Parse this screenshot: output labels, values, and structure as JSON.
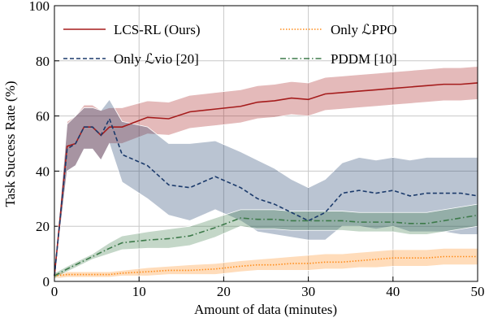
{
  "chart_data": {
    "type": "line",
    "xlabel": "Amount of data (minutes)",
    "ylabel": "Task Success Rate (%)",
    "xlim": [
      0,
      50
    ],
    "ylim": [
      0,
      100
    ],
    "xticks": [
      0,
      10,
      20,
      30,
      40,
      50
    ],
    "yticks": [
      0,
      20,
      40,
      60,
      80,
      100
    ],
    "grid": true,
    "x": [
      0,
      1.5,
      2.5,
      3.5,
      4.5,
      5.5,
      6.5,
      8,
      11,
      13.5,
      16,
      19,
      22,
      24,
      26,
      28,
      30,
      32,
      34,
      36,
      38,
      40,
      42,
      44,
      46,
      48,
      50
    ],
    "series": [
      {
        "name": "LCS-RL (Ours)",
        "color": "#a51c1c",
        "dash": "solid",
        "values": [
          2,
          49,
          50,
          56,
          56,
          53,
          56,
          56,
          59.5,
          59,
          61.5,
          62.5,
          63.5,
          65,
          65.5,
          66.5,
          66,
          68,
          68.5,
          69,
          69.5,
          70,
          70.5,
          71,
          71.5,
          71.5,
          72
        ],
        "upper": [
          3,
          58,
          60,
          64,
          64,
          62,
          63,
          63,
          65.5,
          65,
          67.5,
          68.5,
          69.5,
          71,
          71.5,
          72.5,
          72,
          74,
          74.5,
          75,
          75.5,
          76,
          76.5,
          77,
          77.5,
          77.5,
          78
        ],
        "lower": [
          1,
          40,
          42,
          48,
          48,
          44,
          50,
          50,
          53.5,
          53,
          55.5,
          56.5,
          57.5,
          59,
          59.5,
          60.5,
          60,
          62,
          62.5,
          63,
          63.5,
          64,
          64.5,
          65,
          65.5,
          65.5,
          66
        ]
      },
      {
        "name": "Only ℒvio [20]",
        "color": "#1b3a6b",
        "dash": "dashed",
        "values": [
          2,
          48,
          50,
          56,
          56,
          53,
          59,
          46,
          42,
          35,
          34,
          38,
          34,
          30,
          28,
          25,
          22,
          25,
          32,
          33,
          32,
          33,
          31,
          32,
          32,
          32,
          31
        ],
        "upper": [
          3,
          57,
          60,
          63,
          63,
          62,
          66,
          58,
          56,
          50,
          50,
          51,
          47,
          44,
          41,
          37,
          34,
          37,
          43,
          45,
          44,
          45,
          44,
          45,
          45,
          45,
          45
        ],
        "lower": [
          1,
          40,
          42,
          48,
          48,
          44,
          50,
          36,
          30,
          24,
          22,
          26,
          22,
          18,
          17,
          16,
          15,
          15,
          20,
          20,
          19,
          20,
          18,
          18,
          18,
          17,
          17
        ]
      },
      {
        "name": "Only ℒPPO",
        "color": "#ff8c1a",
        "dash": "dotted",
        "values": [
          2,
          2.5,
          2.5,
          2.5,
          2.5,
          2.5,
          2.5,
          3,
          3.5,
          4,
          4,
          4.5,
          5.5,
          6,
          6,
          6.5,
          6.5,
          7,
          7,
          7.5,
          8,
          8.5,
          8.5,
          8.5,
          9,
          9,
          9
        ],
        "upper": [
          3,
          3.5,
          3.5,
          3.5,
          3.5,
          3.5,
          3.5,
          4,
          5,
          5.5,
          6,
          6.5,
          7.5,
          8,
          8.5,
          9,
          9.5,
          10,
          10,
          10.5,
          11,
          11.5,
          11.5,
          11.5,
          12,
          12,
          12
        ],
        "lower": [
          1,
          1.5,
          1.5,
          1.5,
          1.5,
          1.5,
          1.5,
          2,
          2,
          2.5,
          2.5,
          2.5,
          3.5,
          4,
          4,
          4,
          4,
          4.5,
          4.5,
          5,
          5,
          5.5,
          5.5,
          5.5,
          6,
          6,
          6
        ]
      },
      {
        "name": "PDDM [10]",
        "color": "#3d7a4a",
        "dash": "dashdot",
        "values": [
          2,
          4.5,
          6,
          7.5,
          9,
          10.5,
          12,
          14,
          15,
          15.5,
          16.5,
          19.5,
          23,
          22.5,
          22.5,
          22,
          22,
          22,
          22,
          21.5,
          21.5,
          21.5,
          21,
          21,
          22,
          23,
          24
        ],
        "upper": [
          3,
          5.5,
          7,
          8.5,
          10,
          12,
          14,
          16.5,
          18,
          19,
          20,
          23,
          26,
          26,
          26,
          25.5,
          25.5,
          25.5,
          25.5,
          25,
          25,
          25,
          25,
          25,
          26,
          27,
          28
        ],
        "lower": [
          1,
          3.5,
          5,
          6.5,
          8,
          9,
          10,
          11.5,
          12,
          12,
          13,
          16,
          20,
          19,
          19,
          18.5,
          18.5,
          18.5,
          18.5,
          18,
          18,
          18,
          17,
          17,
          18,
          19,
          20
        ]
      }
    ]
  }
}
